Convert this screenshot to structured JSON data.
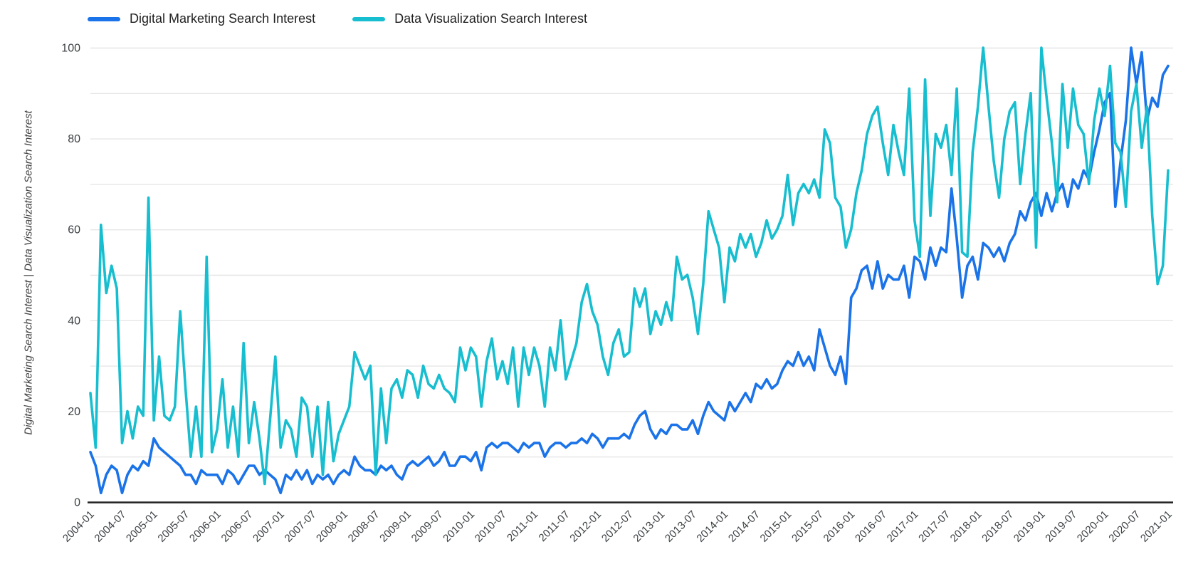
{
  "page": {
    "background": "#ffffff"
  },
  "legend": {
    "items": [
      {
        "label": "Digital Marketing Search Interest",
        "color": "#1a73e8"
      },
      {
        "label": "Data Visualization Search Interest",
        "color": "#17becf"
      }
    ]
  },
  "y_axis": {
    "title": "Digital Marketing Search Interest | Data Visualization Search Interest",
    "ticks": [
      0,
      20,
      40,
      60,
      80,
      100
    ],
    "minor_grid_step": 10,
    "range": [
      0,
      100
    ],
    "grid_color": "#e6e6e6",
    "axis_line_color": "#212121",
    "tick_label_color": "#3c4043"
  },
  "x_axis": {
    "tick_labels": [
      "2004-01",
      "2004-07",
      "2005-01",
      "2005-07",
      "2006-01",
      "2006-07",
      "2007-01",
      "2007-07",
      "2008-01",
      "2008-07",
      "2009-01",
      "2009-07",
      "2010-01",
      "2010-07",
      "2011-01",
      "2011-07",
      "2012-01",
      "2012-07",
      "2013-01",
      "2013-07",
      "2014-01",
      "2014-07",
      "2015-01",
      "2015-07",
      "2016-01",
      "2016-07",
      "2017-01",
      "2017-07",
      "2018-01",
      "2018-07",
      "2019-01",
      "2019-07",
      "2020-01",
      "2020-07",
      "2021-01"
    ],
    "tick_every_n_points": 6
  },
  "chart_data": {
    "type": "line",
    "title": "",
    "xlabel": "",
    "ylabel": "Digital Marketing Search Interest | Data Visualization Search Interest",
    "x_start": "2004-01",
    "x_frequency": "monthly",
    "n_points": 205,
    "ylim": [
      0,
      100
    ],
    "grid": true,
    "legend_position": "top-left",
    "series": [
      {
        "name": "Digital Marketing Search Interest",
        "color": "#1a73e8",
        "values": [
          11,
          8,
          2,
          6,
          8,
          7,
          2,
          6,
          8,
          7,
          9,
          8,
          14,
          12,
          11,
          10,
          9,
          8,
          6,
          6,
          4,
          7,
          6,
          6,
          6,
          4,
          7,
          6,
          4,
          6,
          8,
          8,
          6,
          7,
          6,
          5,
          2,
          6,
          5,
          7,
          5,
          7,
          4,
          6,
          5,
          6,
          4,
          6,
          7,
          6,
          10,
          8,
          7,
          7,
          6,
          8,
          7,
          8,
          6,
          5,
          8,
          9,
          8,
          9,
          10,
          8,
          9,
          11,
          8,
          8,
          10,
          10,
          9,
          11,
          7,
          12,
          13,
          12,
          13,
          13,
          12,
          11,
          13,
          12,
          13,
          13,
          10,
          12,
          13,
          13,
          12,
          13,
          13,
          14,
          13,
          15,
          14,
          12,
          14,
          14,
          14,
          15,
          14,
          17,
          19,
          20,
          16,
          14,
          16,
          15,
          17,
          17,
          16,
          16,
          18,
          15,
          19,
          22,
          20,
          19,
          18,
          22,
          20,
          22,
          24,
          22,
          26,
          25,
          27,
          25,
          26,
          29,
          31,
          30,
          33,
          30,
          32,
          29,
          38,
          34,
          30,
          28,
          32,
          26,
          45,
          47,
          51,
          52,
          47,
          53,
          47,
          50,
          49,
          49,
          52,
          45,
          54,
          53,
          49,
          56,
          52,
          56,
          55,
          69,
          58,
          45,
          52,
          54,
          49,
          57,
          56,
          54,
          56,
          53,
          57,
          59,
          64,
          62,
          66,
          68,
          63,
          68,
          64,
          68,
          70,
          65,
          71,
          69,
          73,
          71,
          77,
          82,
          88,
          90,
          65,
          75,
          84,
          100,
          92,
          99,
          84,
          89,
          87,
          94,
          96
        ]
      },
      {
        "name": "Data Visualization Search Interest",
        "color": "#17becf",
        "values": [
          24,
          12,
          61,
          46,
          52,
          47,
          13,
          20,
          14,
          21,
          19,
          67,
          18,
          32,
          19,
          18,
          21,
          42,
          25,
          10,
          21,
          10,
          54,
          11,
          16,
          27,
          12,
          21,
          10,
          35,
          13,
          22,
          14,
          4,
          18,
          32,
          12,
          18,
          16,
          10,
          23,
          21,
          10,
          21,
          6,
          22,
          9,
          15,
          18,
          21,
          33,
          30,
          27,
          30,
          6,
          25,
          13,
          25,
          27,
          23,
          29,
          28,
          23,
          30,
          26,
          25,
          28,
          25,
          24,
          22,
          34,
          29,
          34,
          32,
          21,
          31,
          36,
          27,
          31,
          26,
          34,
          21,
          34,
          28,
          34,
          30,
          21,
          34,
          29,
          40,
          27,
          31,
          35,
          44,
          48,
          42,
          39,
          32,
          28,
          35,
          38,
          32,
          33,
          47,
          43,
          47,
          37,
          42,
          39,
          44,
          40,
          54,
          49,
          50,
          45,
          37,
          48,
          64,
          60,
          56,
          44,
          56,
          53,
          59,
          56,
          59,
          54,
          57,
          62,
          58,
          60,
          63,
          72,
          61,
          68,
          70,
          68,
          71,
          67,
          82,
          79,
          67,
          65,
          56,
          60,
          68,
          73,
          81,
          85,
          87,
          79,
          72,
          83,
          77,
          72,
          91,
          62,
          54,
          93,
          63,
          81,
          78,
          83,
          72,
          91,
          55,
          54,
          77,
          87,
          100,
          87,
          75,
          67,
          80,
          86,
          88,
          70,
          81,
          90,
          56,
          100,
          89,
          79,
          66,
          92,
          78,
          91,
          83,
          81,
          70,
          84,
          91,
          85,
          96,
          79,
          77,
          65,
          86,
          92,
          78,
          87,
          63,
          48,
          52,
          73
        ]
      }
    ]
  }
}
